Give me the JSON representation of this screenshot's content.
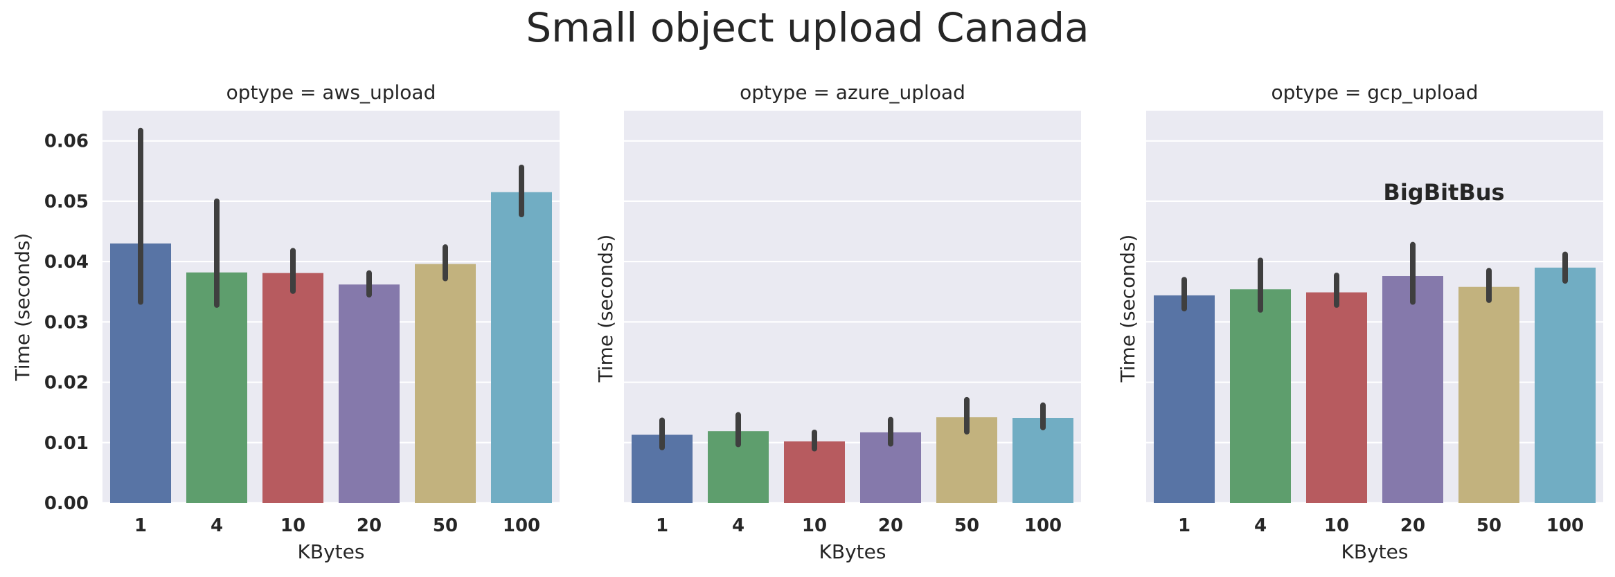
{
  "chart_data": {
    "type": "bar",
    "title": "Small object upload Canada",
    "categories": [
      "1",
      "4",
      "10",
      "20",
      "50",
      "100"
    ],
    "colors": [
      "#5874A5",
      "#5E9E6D",
      "#B75B5F",
      "#8579AB",
      "#C2B27E",
      "#71ADC3"
    ],
    "ylim": [
      0,
      0.065
    ],
    "yticks": [
      "0.00",
      "0.01",
      "0.02",
      "0.03",
      "0.04",
      "0.05",
      "0.06"
    ],
    "ytick_values": [
      0,
      0.01,
      0.02,
      0.03,
      0.04,
      0.05,
      0.06
    ],
    "grid": true,
    "shared_y": true,
    "watermark": "BigBitBus",
    "panels": [
      {
        "title": "optype = aws_upload",
        "xlabel": "KBytes",
        "ylabel": "Time (seconds)",
        "values": [
          0.043,
          0.0382,
          0.0381,
          0.0362,
          0.0396,
          0.0515
        ],
        "ci_low": [
          0.0333,
          0.0328,
          0.0351,
          0.0345,
          0.0372,
          0.0478
        ],
        "ci_high": [
          0.0617,
          0.05,
          0.0418,
          0.0381,
          0.0424,
          0.0556
        ]
      },
      {
        "title": "optype = azure_upload",
        "xlabel": "KBytes",
        "ylabel": "Time (seconds)",
        "values": [
          0.0113,
          0.0119,
          0.0102,
          0.0117,
          0.0142,
          0.0141
        ],
        "ci_low": [
          0.0092,
          0.0097,
          0.009,
          0.0098,
          0.0118,
          0.0125
        ],
        "ci_high": [
          0.0137,
          0.0146,
          0.0117,
          0.0138,
          0.0171,
          0.0162
        ]
      },
      {
        "title": "optype = gcp_upload",
        "xlabel": "KBytes",
        "ylabel": "Time (seconds)",
        "values": [
          0.0344,
          0.0354,
          0.0349,
          0.0376,
          0.0358,
          0.039
        ],
        "ci_low": [
          0.0322,
          0.032,
          0.0328,
          0.0333,
          0.0336,
          0.0368
        ],
        "ci_high": [
          0.037,
          0.0402,
          0.0377,
          0.0428,
          0.0385,
          0.0412
        ]
      }
    ]
  }
}
